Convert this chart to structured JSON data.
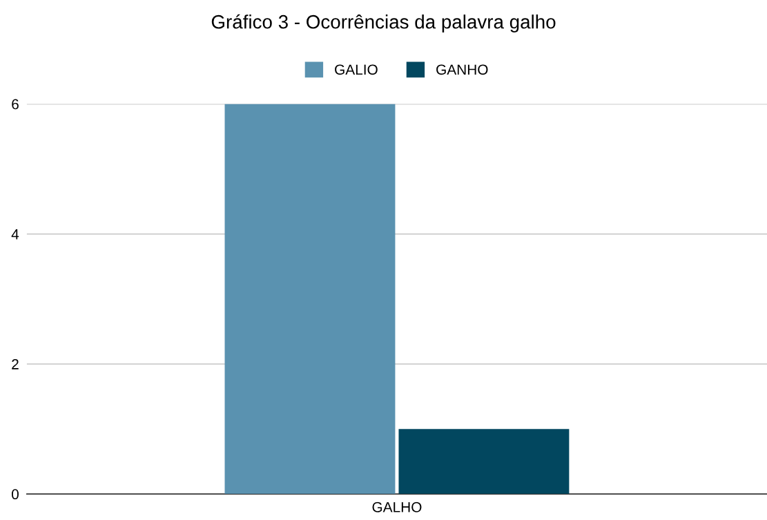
{
  "chart_data": {
    "type": "bar",
    "title": "Gráfico 3 - Ocorrências da palavra galho",
    "categories": [
      "GALHO"
    ],
    "series": [
      {
        "name": "GALIO",
        "color": "#5a92b0",
        "values": [
          6
        ]
      },
      {
        "name": "GANHO",
        "color": "#02475f",
        "values": [
          1
        ]
      }
    ],
    "ylim": [
      0,
      6
    ],
    "yticks": [
      0,
      2,
      4,
      6
    ],
    "grid": "y",
    "legend": "top"
  }
}
